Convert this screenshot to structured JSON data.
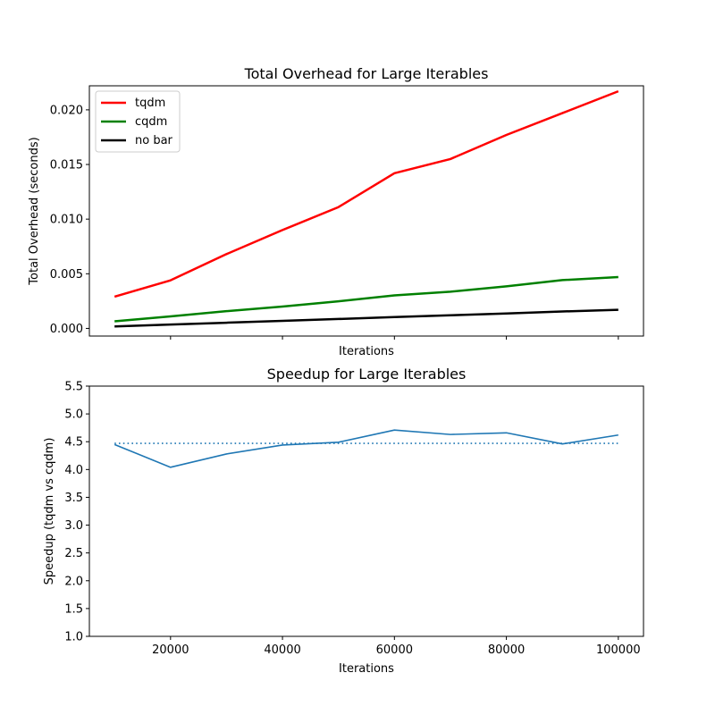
{
  "chart_data": [
    {
      "type": "line",
      "title": "Total Overhead for Large Iterables",
      "xlabel": "Iterations",
      "ylabel": "Total Overhead (seconds)",
      "x": [
        10000,
        20000,
        30000,
        40000,
        50000,
        60000,
        70000,
        80000,
        90000,
        100000
      ],
      "xlim": [
        5500,
        104500
      ],
      "ylim": [
        -0.0007,
        0.0222
      ],
      "yticks": [
        0.0,
        0.005,
        0.01,
        0.015,
        0.02
      ],
      "ytick_labels": [
        "0.000",
        "0.005",
        "0.010",
        "0.015",
        "0.020"
      ],
      "xticks": [
        20000,
        40000,
        60000,
        80000,
        100000
      ],
      "xtick_labels_shown": false,
      "grid": false,
      "legend": "top-left",
      "series": [
        {
          "name": "tqdm",
          "color": "#ff0000",
          "values": [
            0.0029,
            0.0044,
            0.0068,
            0.009,
            0.0111,
            0.0142,
            0.0155,
            0.0177,
            0.0197,
            0.0217
          ]
        },
        {
          "name": "cqdm",
          "color": "#008000",
          "values": [
            0.00065,
            0.0011,
            0.00158,
            0.002,
            0.00248,
            0.00302,
            0.00336,
            0.00385,
            0.00442,
            0.0047
          ]
        },
        {
          "name": "no bar",
          "color": "#000000",
          "values": [
            0.00018,
            0.00035,
            0.00052,
            0.00069,
            0.00086,
            0.00104,
            0.0012,
            0.00137,
            0.00155,
            0.0017
          ]
        }
      ]
    },
    {
      "type": "line",
      "title": "Speedup for Large Iterables",
      "xlabel": "Iterations",
      "ylabel": "Speedup (tqdm vs cqdm)",
      "x": [
        10000,
        20000,
        30000,
        40000,
        50000,
        60000,
        70000,
        80000,
        90000,
        100000
      ],
      "xlim": [
        5500,
        104500
      ],
      "ylim": [
        1.0,
        5.5
      ],
      "yticks": [
        1.0,
        1.5,
        2.0,
        2.5,
        3.0,
        3.5,
        4.0,
        4.5,
        5.0,
        5.5
      ],
      "ytick_labels": [
        "1.0",
        "1.5",
        "2.0",
        "2.5",
        "3.0",
        "3.5",
        "4.0",
        "4.5",
        "5.0",
        "5.5"
      ],
      "xticks": [
        20000,
        40000,
        60000,
        80000,
        100000
      ],
      "xtick_labels": [
        "20000",
        "40000",
        "60000",
        "80000",
        "100000"
      ],
      "grid": false,
      "series": [
        {
          "color": "#1f77b4",
          "style": "solid",
          "values": [
            4.45,
            4.04,
            4.28,
            4.44,
            4.49,
            4.71,
            4.63,
            4.66,
            4.46,
            4.62
          ]
        }
      ],
      "reference_line": {
        "value": 4.47,
        "style": "dotted",
        "color": "#1f77b4"
      }
    }
  ]
}
